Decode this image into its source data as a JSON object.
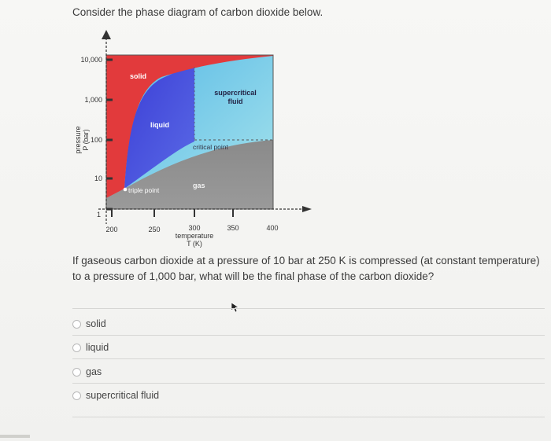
{
  "question": {
    "intro": "Consider the phase diagram of carbon dioxide below.",
    "prompt": "If gaseous carbon dioxide at a pressure of 10 bar at 250 K is compressed (at constant temperature) to a pressure of 1,000 bar, what will be the final phase of the carbon dioxide?"
  },
  "diagram": {
    "y_axis_label_line1": "pressure",
    "y_axis_label_line2": "P (bar)",
    "x_axis_label_line1": "temperature",
    "x_axis_label_line2": "T (K)",
    "y_ticks": [
      "10,000",
      "1,000",
      "100",
      "10",
      "1"
    ],
    "x_ticks": [
      "200",
      "250",
      "300",
      "350",
      "400"
    ],
    "regions": {
      "solid": "solid",
      "liquid": "liquid",
      "supercritical_line1": "supercritical",
      "supercritical_line2": "fluid",
      "gas": "gas"
    },
    "points": {
      "triple": "triple point",
      "critical": "critical point"
    },
    "colors": {
      "solid": "#e23a3c",
      "liquid": "#4a55e0",
      "supercritical": "#7fd0e8",
      "gas": "#8f8f8f"
    }
  },
  "options": [
    {
      "label": "solid"
    },
    {
      "label": "liquid"
    },
    {
      "label": "gas"
    },
    {
      "label": "supercritical fluid"
    }
  ],
  "icons": {
    "cursor": "mouse-pointer-icon",
    "radio": "radio-button-icon"
  }
}
